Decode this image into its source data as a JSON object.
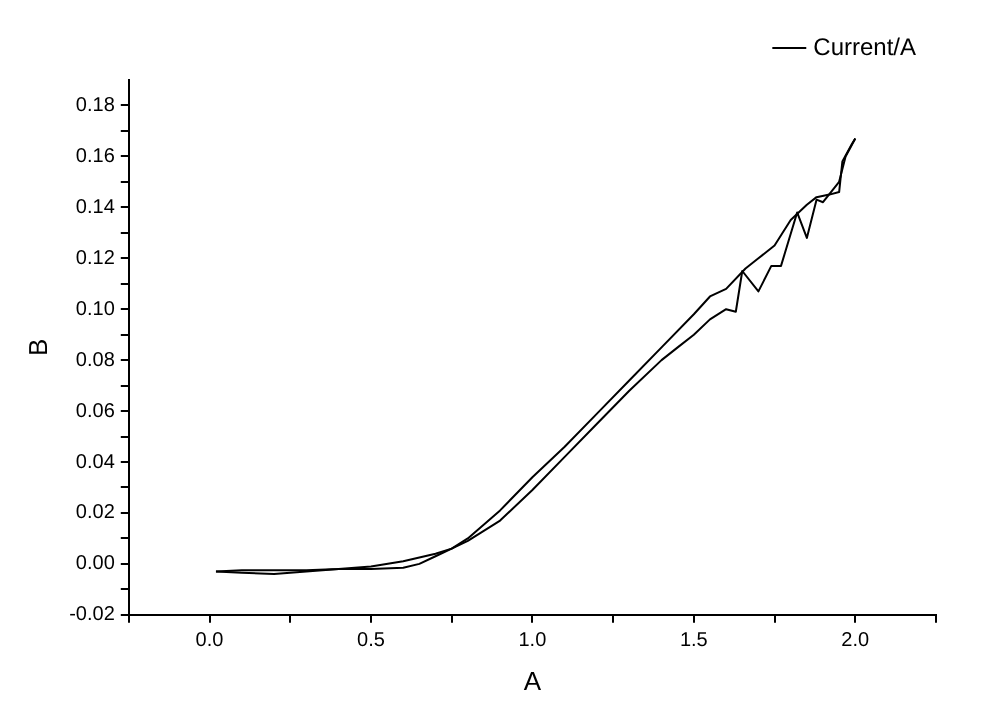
{
  "chart_data": {
    "type": "line",
    "xlabel": "A",
    "ylabel": "B",
    "legend": "top right",
    "grid": false,
    "marker": "none",
    "line_style": "solid",
    "xlim": [
      -0.25,
      2.25
    ],
    "xticks": [
      {
        "value": -0.25,
        "label": null
      },
      {
        "value": 0,
        "label": "0.0"
      },
      {
        "value": 0.25,
        "label": null
      },
      {
        "value": 0.5,
        "label": "0.5"
      },
      {
        "value": 0.75,
        "label": null
      },
      {
        "value": 1,
        "label": "1.0"
      },
      {
        "value": 1.25,
        "label": null
      },
      {
        "value": 1.5,
        "label": "1.5"
      },
      {
        "value": 1.75,
        "label": null
      },
      {
        "value": 2,
        "label": "2.0"
      },
      {
        "value": 2.25,
        "label": null
      }
    ],
    "ylim": [
      -0.02,
      0.19
    ],
    "yticks": [
      -0.02,
      {
        "value": -0.01,
        "label": null
      },
      {
        "value": 0,
        "label": "0.00"
      },
      {
        "value": 0.01,
        "label": null
      },
      0.02,
      {
        "value": 0.03,
        "label": null
      },
      0.04,
      {
        "value": 0.05,
        "label": null
      },
      0.06,
      {
        "value": 0.07,
        "label": null
      },
      {
        "value": 0.08,
        "label": "0.08"
      },
      {
        "value": 0.09,
        "label": null
      },
      {
        "value": 0.1,
        "label": "0.10"
      },
      {
        "value": 0.11,
        "label": null
      },
      0.12,
      {
        "value": 0.13,
        "label": null
      },
      0.14,
      {
        "value": 0.15,
        "label": null
      },
      0.16,
      {
        "value": 0.17,
        "label": null
      },
      0.18
    ],
    "series": [
      {
        "name": "Current/A",
        "color": "#000000",
        "x": [
          0.02,
          0.1,
          0.2,
          0.3,
          0.4,
          0.5,
          0.6,
          0.65,
          0.7,
          0.75,
          0.8,
          0.9,
          1.0,
          1.1,
          1.2,
          1.3,
          1.4,
          1.45,
          1.5,
          1.55,
          1.6,
          1.63,
          1.65,
          1.7,
          1.74,
          1.77,
          1.82,
          1.85,
          1.88,
          1.9,
          1.95,
          1.97,
          2.0
        ],
        "values": [
          -0.003,
          -0.0035,
          -0.004,
          -0.003,
          -0.002,
          -0.002,
          -0.0015,
          0,
          0.003,
          0.006,
          0.009,
          0.017,
          0.029,
          0.042,
          0.055,
          0.068,
          0.08,
          0.085,
          0.09,
          0.096,
          0.1,
          0.099,
          0.115,
          0.107,
          0.117,
          0.117,
          0.138,
          0.128,
          0.143,
          0.142,
          0.15,
          0.16,
          0.167
        ]
      },
      {
        "color": "#000000",
        "x": [
          2.0,
          1.99,
          1.96,
          1.95,
          1.92,
          1.88,
          1.85,
          1.8,
          1.75,
          1.7,
          1.66,
          1.6,
          1.55,
          1.5,
          1.4,
          1.3,
          1.2,
          1.1,
          1.0,
          0.9,
          0.8,
          0.75,
          0.7,
          0.6,
          0.5,
          0.4,
          0.3,
          0.2,
          0.1,
          0.02
        ],
        "values": [
          0.167,
          0.165,
          0.158,
          0.146,
          0.145,
          0.144,
          0.141,
          0.135,
          0.125,
          0.12,
          0.116,
          0.108,
          0.105,
          0.098,
          0.085,
          0.072,
          0.059,
          0.046,
          0.034,
          0.021,
          0.01,
          0.006,
          0.004,
          0.001,
          -0.001,
          -0.002,
          -0.0025,
          -0.0025,
          -0.0025,
          -0.003
        ]
      }
    ]
  }
}
